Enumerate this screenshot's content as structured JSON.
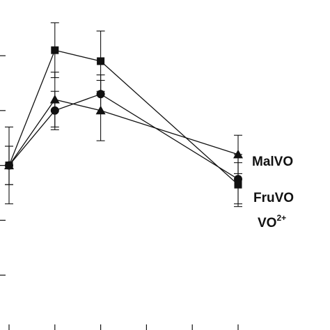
{
  "chart_data": {
    "type": "line",
    "title": "",
    "xlabel": "",
    "ylabel": "",
    "x": [
      0,
      1,
      2,
      5
    ],
    "xlim": [
      -0.1,
      6
    ],
    "ylim": [
      0,
      6
    ],
    "y_ticks": [
      1,
      2,
      3,
      4,
      5
    ],
    "x_ticks": [
      0,
      1,
      2,
      3,
      4,
      5
    ],
    "grid": false,
    "color": "#111111",
    "series": [
      {
        "name": "MalVO",
        "marker": "triangle",
        "values": [
          3.0,
          4.2,
          4.0,
          3.2
        ],
        "errors": [
          0.7,
          0.5,
          0.55,
          0.35
        ]
      },
      {
        "name": "FruVO",
        "marker": "circle",
        "values": [
          3.0,
          4.0,
          4.3,
          2.75
        ],
        "errors": [
          0.35,
          0.35,
          0.35,
          0.45
        ]
      },
      {
        "name": "VO2+",
        "name_base": "VO",
        "name_sup": "2+",
        "marker": "square",
        "values": [
          3.0,
          5.1,
          4.9,
          2.65
        ],
        "errors": [
          0.35,
          0.5,
          0.55,
          0.4
        ]
      }
    ]
  }
}
